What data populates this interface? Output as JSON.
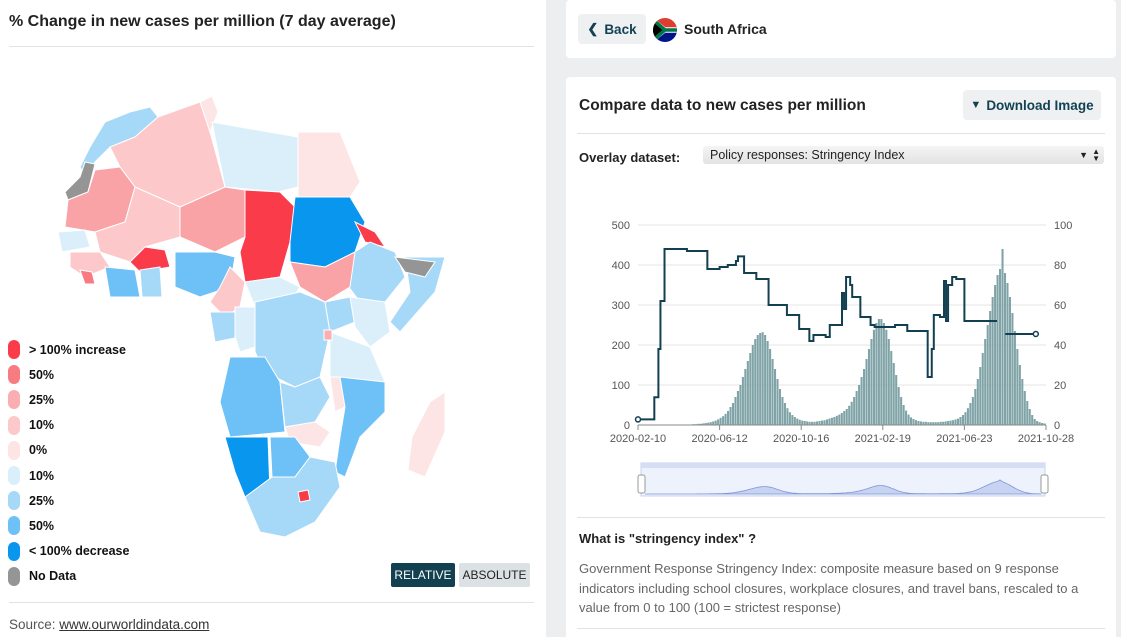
{
  "left_panel": {
    "title": "% Change in new cases per million (7 day average)",
    "legend": [
      {
        "label": "> 100% increase",
        "color": "#fa3b4a"
      },
      {
        "label": "50%",
        "color": "#f97b82"
      },
      {
        "label": "25%",
        "color": "#fbaeb1"
      },
      {
        "label": "10%",
        "color": "#fcc8ca"
      },
      {
        "label": "0%",
        "color": "#fde4e5"
      },
      {
        "label": "10%",
        "color": "#dbeffb"
      },
      {
        "label": "25%",
        "color": "#a6d8f8"
      },
      {
        "label": "50%",
        "color": "#6ec1f6"
      },
      {
        "label": "< 100% decrease",
        "color": "#0996ef"
      },
      {
        "label": "No Data",
        "color": "#959595"
      }
    ],
    "toggle": {
      "relative": "RELATIVE",
      "absolute": "ABSOLUTE",
      "active": "relative"
    },
    "source_prefix": "Source: ",
    "source_link": "www.ourworldindata.com"
  },
  "header": {
    "back_label": "Back",
    "country": "South Africa"
  },
  "compare": {
    "title": "Compare data to new cases per million",
    "download_label": "Download Image",
    "overlay_label": "Overlay dataset:",
    "overlay_value": "Policy responses: Stringency Index",
    "question": "What is \"stringency index\" ?",
    "explanation": "Government Response Stringency Index: composite measure based on 9 response indicators including school closures, workplace closures, and travel bans, rescaled to a value from 0 to 100 (100 = strictest response)"
  },
  "chart_data": {
    "type": "bar",
    "x_tick_labels": [
      "2020-02-10",
      "2020-06-12",
      "2020-10-16",
      "2021-02-19",
      "2021-06-23",
      "2021-10-28"
    ],
    "y_left_ticks": [
      "0",
      "100",
      "200",
      "300",
      "400",
      "500"
    ],
    "y_right_ticks": [
      "0",
      "20",
      "40",
      "60",
      "80",
      "100"
    ],
    "ylim_left": [
      0,
      500
    ],
    "ylim_right": [
      0,
      100
    ],
    "series": [
      {
        "kind": "bars",
        "color": "#7fa3a6",
        "description": "new cases per million (daily)",
        "values": [
          0,
          0,
          0,
          0,
          0,
          0,
          0,
          0,
          0,
          0,
          0,
          0,
          0,
          0,
          0,
          0,
          0,
          0,
          0,
          0,
          1,
          1,
          2,
          2,
          3,
          3,
          4,
          5,
          6,
          7,
          9,
          11,
          14,
          18,
          22,
          28,
          35,
          45,
          55,
          70,
          85,
          100,
          120,
          140,
          160,
          180,
          200,
          215,
          225,
          230,
          232,
          225,
          210,
          190,
          165,
          140,
          115,
          90,
          70,
          55,
          42,
          32,
          25,
          20,
          16,
          13,
          11,
          10,
          9,
          8,
          8,
          8,
          9,
          10,
          11,
          12,
          14,
          16,
          18,
          20,
          23,
          26,
          30,
          35,
          40,
          48,
          58,
          70,
          85,
          100,
          120,
          140,
          165,
          190,
          215,
          238,
          255,
          265,
          265,
          255,
          238,
          215,
          185,
          155,
          125,
          95,
          70,
          50,
          36,
          26,
          19,
          15,
          12,
          10,
          9,
          8,
          8,
          7,
          7,
          7,
          7,
          7,
          8,
          8,
          9,
          10,
          11,
          12,
          14,
          16,
          20,
          25,
          32,
          42,
          55,
          70,
          90,
          115,
          145,
          180,
          215,
          250,
          285,
          320,
          350,
          375,
          390,
          440,
          380,
          355,
          320,
          280,
          235,
          190,
          150,
          115,
          85,
          60,
          40,
          25,
          15,
          10,
          7,
          5,
          4
        ]
      },
      {
        "kind": "line",
        "color": "#124050",
        "description": "stringency index",
        "points": [
          [
            0,
            2.8
          ],
          [
            0.03,
            2.8
          ],
          [
            0.04,
            13.9
          ],
          [
            0.05,
            38
          ],
          [
            0.055,
            62
          ],
          [
            0.065,
            88
          ],
          [
            0.11,
            88
          ],
          [
            0.12,
            87
          ],
          [
            0.165,
            87
          ],
          [
            0.17,
            78
          ],
          [
            0.2,
            79
          ],
          [
            0.22,
            80
          ],
          [
            0.24,
            82
          ],
          [
            0.245,
            84.3
          ],
          [
            0.26,
            76
          ],
          [
            0.29,
            73
          ],
          [
            0.31,
            73
          ],
          [
            0.32,
            60
          ],
          [
            0.36,
            60
          ],
          [
            0.365,
            55
          ],
          [
            0.39,
            55
          ],
          [
            0.395,
            48
          ],
          [
            0.41,
            48
          ],
          [
            0.42,
            42
          ],
          [
            0.43,
            45
          ],
          [
            0.46,
            44
          ],
          [
            0.47,
            50
          ],
          [
            0.49,
            50
          ],
          [
            0.5,
            66
          ],
          [
            0.505,
            58
          ],
          [
            0.51,
            74
          ],
          [
            0.52,
            70
          ],
          [
            0.525,
            64
          ],
          [
            0.54,
            64
          ],
          [
            0.545,
            54
          ],
          [
            0.57,
            50
          ],
          [
            0.58,
            49
          ],
          [
            0.63,
            50
          ],
          [
            0.65,
            50
          ],
          [
            0.66,
            47
          ],
          [
            0.7,
            47
          ],
          [
            0.71,
            24
          ],
          [
            0.72,
            38
          ],
          [
            0.725,
            55
          ],
          [
            0.74,
            54
          ],
          [
            0.75,
            72
          ],
          [
            0.755,
            52
          ],
          [
            0.76,
            70
          ],
          [
            0.77,
            74
          ],
          [
            0.78,
            73
          ],
          [
            0.79,
            73
          ],
          [
            0.8,
            52
          ],
          [
            0.88,
            52
          ]
        ],
        "tail": [
          [
            0.9,
            45.5
          ],
          [
            0.975,
            45.5
          ]
        ]
      }
    ]
  }
}
